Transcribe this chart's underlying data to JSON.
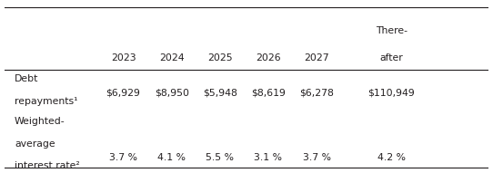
{
  "col_headers_line1": [
    "",
    "2023",
    "2024",
    "2025",
    "2026",
    "2027",
    "There-"
  ],
  "col_headers_line2": [
    "",
    "",
    "",
    "",
    "",
    "",
    "after"
  ],
  "row1_label_line1": "Debt",
  "row1_label_line2": "repayments¹",
  "row1_values": [
    "$6,929",
    "$8,950",
    "$5,948",
    "$8,619",
    "$6,278",
    "$110,949"
  ],
  "row2_label_line1": "Weighted-",
  "row2_label_line2": "average",
  "row2_label_line3": "interest rate²",
  "row2_values": [
    "3.7 %",
    "4.1 %",
    "5.5 %",
    "3.1 %",
    "3.7 %",
    "4.2 %"
  ],
  "bg_color": "#ffffff",
  "text_color": "#231f20",
  "font_size": 7.8
}
